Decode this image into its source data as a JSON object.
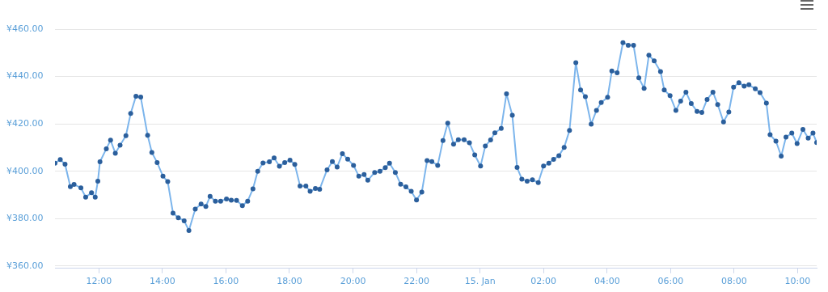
{
  "chart_data": {
    "type": "line",
    "x": [
      "--01-14T10:37",
      "--01-14T10:47",
      "--01-14T10:56",
      "--01-14T11:06",
      "--01-14T11:13",
      "--01-14T11:26",
      "--01-14T11:35",
      "--01-14T11:46",
      "--01-14T11:53",
      "--01-14T11:58",
      "--01-14T12:02",
      "--01-14T12:14",
      "--01-14T12:22",
      "--01-14T12:31",
      "--01-14T12:40",
      "--01-14T12:51",
      "--01-14T13:00",
      "--01-14T13:10",
      "--01-14T13:19",
      "--01-14T13:32",
      "--01-14T13:40",
      "--01-14T13:50",
      "--01-14T14:01",
      "--01-14T14:10",
      "--01-14T14:20",
      "--01-14T14:30",
      "--01-14T14:41",
      "--01-14T14:50",
      "--01-14T15:02",
      "--01-14T15:13",
      "--01-14T15:22",
      "--01-14T15:30",
      "--01-14T15:40",
      "--01-14T15:50",
      "--01-14T16:01",
      "--01-14T16:10",
      "--01-14T16:20",
      "--01-14T16:31",
      "--01-14T16:41",
      "--01-14T16:51",
      "--01-14T17:00",
      "--01-14T17:10",
      "--01-14T17:22",
      "--01-14T17:31",
      "--01-14T17:41",
      "--01-14T17:51",
      "--01-14T18:01",
      "--01-14T18:10",
      "--01-14T18:20",
      "--01-14T18:31",
      "--01-14T18:39",
      "--01-14T18:49",
      "--01-14T18:57",
      "--01-14T19:11",
      "--01-14T19:21",
      "--01-14T19:30",
      "--01-14T19:40",
      "--01-14T19:50",
      "--01-14T20:01",
      "--01-14T20:11",
      "--01-14T20:21",
      "--01-14T20:28",
      "--01-14T20:41",
      "--01-14T20:51",
      "--01-14T21:01",
      "--01-14T21:09",
      "--01-14T21:20",
      "--01-14T21:30",
      "--01-14T21:40",
      "--01-14T21:50",
      "--01-14T22:00",
      "--01-14T22:10",
      "--01-14T22:20",
      "--01-14T22:29",
      "--01-14T22:40",
      "--01-14T22:50",
      "--01-14T22:59",
      "--01-14T23:10",
      "--01-14T23:19",
      "--01-14T23:30",
      "--01-14T23:40",
      "--01-14T23:50",
      "--01-15T00:01",
      "--01-15T00:10",
      "--01-15T00:20",
      "--01-15T00:28",
      "--01-15T00:40",
      "--01-15T00:50",
      "--01-15T01:01",
      "--01-15T01:10",
      "--01-15T01:19",
      "--01-15T01:29",
      "--01-15T01:39",
      "--01-15T01:50",
      "--01-15T02:00",
      "--01-15T02:10",
      "--01-15T02:19",
      "--01-15T02:29",
      "--01-15T02:39",
      "--01-15T02:49",
      "--01-15T03:01",
      "--01-15T03:10",
      "--01-15T03:19",
      "--01-15T03:30",
      "--01-15T03:40",
      "--01-15T03:49",
      "--01-15T04:01",
      "--01-15T04:09",
      "--01-15T04:19",
      "--01-15T04:30",
      "--01-15T04:40",
      "--01-15T04:50",
      "--01-15T05:00",
      "--01-15T05:10",
      "--01-15T05:19",
      "--01-15T05:29",
      "--01-15T05:41",
      "--01-15T05:48",
      "--01-15T05:59",
      "--01-15T06:10",
      "--01-15T06:19",
      "--01-15T06:29",
      "--01-15T06:39",
      "--01-15T06:50",
      "--01-15T06:59",
      "--01-15T07:09",
      "--01-15T07:20",
      "--01-15T07:29",
      "--01-15T07:40",
      "--01-15T07:50",
      "--01-15T07:59",
      "--01-15T08:09",
      "--01-15T08:19",
      "--01-15T08:28",
      "--01-15T08:40",
      "--01-15T08:49",
      "--01-15T09:01",
      "--01-15T09:08",
      "--01-15T09:19",
      "--01-15T09:29",
      "--01-15T09:38",
      "--01-15T09:49",
      "--01-15T09:59",
      "--01-15T10:10",
      "--01-15T10:20",
      "--01-15T10:29",
      "--01-15T10:36"
    ],
    "series": [
      {
        "color": "#7cb5ec",
        "values": [
          403.4,
          404.9,
          403.0,
          393.5,
          394.4,
          393.0,
          389.1,
          390.9,
          389.1,
          395.8,
          404.0,
          409.5,
          413.1,
          407.6,
          411.0,
          415.0,
          424.4,
          431.7,
          431.3,
          415.2,
          407.9,
          403.7,
          397.9,
          395.6,
          382.3,
          380.4,
          379.1,
          375.0,
          384.0,
          386.2,
          385.1,
          389.4,
          387.4,
          387.4,
          388.3,
          387.8,
          387.7,
          385.5,
          387.4,
          392.6,
          400.0,
          403.5,
          404.0,
          405.6,
          402.1,
          403.7,
          404.7,
          402.9,
          393.8,
          393.8,
          391.5,
          392.7,
          392.4,
          400.6,
          404.1,
          401.8,
          407.4,
          405.1,
          402.5,
          397.9,
          398.6,
          396.2,
          399.5,
          400.0,
          401.5,
          403.4,
          399.5,
          394.5,
          393.4,
          391.5,
          387.9,
          391.2,
          404.5,
          404.1,
          402.5,
          413.0,
          420.3,
          411.4,
          413.3,
          413.3,
          412.0,
          406.9,
          402.2,
          410.7,
          413.2,
          416.2,
          418.1,
          432.7,
          423.6,
          401.6,
          396.7,
          395.8,
          396.4,
          395.2,
          402.2,
          403.4,
          405.0,
          406.6,
          410.1,
          417.2,
          445.8,
          434.3,
          431.5,
          419.9,
          425.7,
          429.0,
          431.2,
          442.3,
          441.6,
          454.3,
          453.2,
          453.2,
          439.4,
          435.0,
          449.0,
          446.6,
          442.1,
          434.3,
          431.9,
          425.7,
          429.6,
          433.4,
          428.6,
          425.3,
          424.8,
          430.3,
          433.4,
          428.2,
          420.8,
          425.0,
          435.5,
          437.4,
          435.9,
          436.5,
          434.8,
          433.2,
          428.8,
          415.4,
          412.7,
          406.4,
          414.4,
          416.1,
          411.7,
          417.7,
          414.0,
          416.1,
          412.1
        ]
      }
    ],
    "xlim": [
      "--01-14T10:37",
      "--01-15T10:36"
    ],
    "xticks": [
      {
        "value": "--01-14T12:00",
        "label": "12:00"
      },
      {
        "value": "--01-14T14:00",
        "label": "14:00"
      },
      {
        "value": "--01-14T16:00",
        "label": "16:00"
      },
      {
        "value": "--01-14T18:00",
        "label": "18:00"
      },
      {
        "value": "--01-14T20:00",
        "label": "20:00"
      },
      {
        "value": "--01-14T22:00",
        "label": "22:00"
      },
      {
        "value": "--01-15T00:00",
        "label": "15. Jan"
      },
      {
        "value": "--01-15T02:00",
        "label": "02:00"
      },
      {
        "value": "--01-15T04:00",
        "label": "04:00"
      },
      {
        "value": "--01-15T06:00",
        "label": "06:00"
      },
      {
        "value": "--01-15T08:00",
        "label": "08:00"
      },
      {
        "value": "--01-15T10:00",
        "label": "10:00"
      }
    ],
    "ylim": [
      359,
      460
    ],
    "yticks": [
      {
        "value": 360,
        "label": "¥360.00"
      },
      {
        "value": 380,
        "label": "¥380.00"
      },
      {
        "value": 400,
        "label": "¥400.00"
      },
      {
        "value": 420,
        "label": "¥420.00"
      },
      {
        "value": 440,
        "label": "¥440.00"
      },
      {
        "value": 460,
        "label": "¥460.00"
      }
    ],
    "grid": "y",
    "legend": false,
    "marker": "circle",
    "line_style": "solid"
  }
}
